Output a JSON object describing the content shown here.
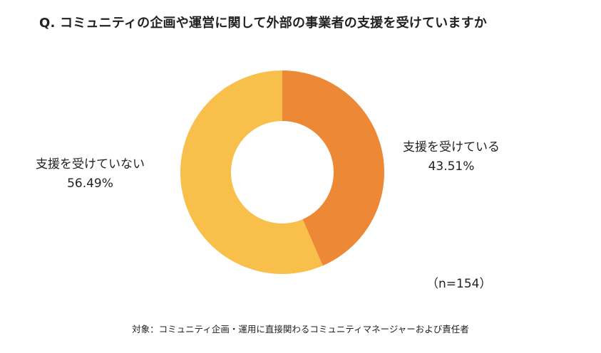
{
  "title": "Q. コミュニティの企画や運営に関して外部の事業者の支援を受けていますか",
  "chart_data": {
    "type": "pie",
    "title": "Q. コミュニティの企画や運営に関して外部の事業者の支援を受けていますか",
    "donut": true,
    "slices": [
      {
        "label": "支援を受けている",
        "value": 43.51,
        "display": "43.51%",
        "color": "#ED8936"
      },
      {
        "label": "支援を受けていない",
        "value": 56.49,
        "display": "56.49%",
        "color": "#F9BF4B"
      }
    ],
    "start": "top",
    "direction": "clockwise",
    "sample_note": "（n=154）",
    "footnote": "対象：コミュニティ企画・運用に直接関わるコミュニティマネージャーおよび責任者"
  }
}
